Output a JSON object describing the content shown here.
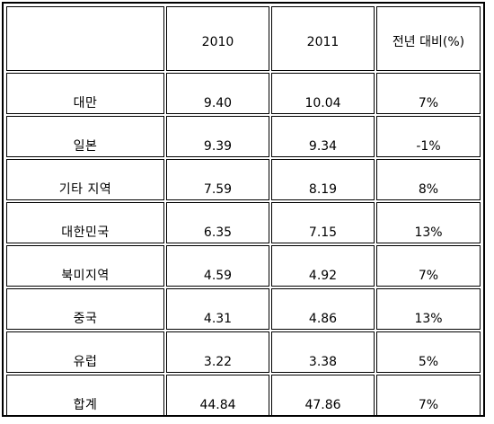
{
  "table": {
    "header": [
      "",
      "2010",
      "2011",
      "전년 대비(%)"
    ],
    "rows": [
      {
        "region": "대만",
        "y2010": "9.40",
        "y2011": "10.04",
        "change": "7%"
      },
      {
        "region": "일본",
        "y2010": "9.39",
        "y2011": "9.34",
        "change": "-1%"
      },
      {
        "region": "기타 지역",
        "y2010": "7.59",
        "y2011": "8.19",
        "change": "8%"
      },
      {
        "region": "대한민국",
        "y2010": "6.35",
        "y2011": "7.15",
        "change": "13%"
      },
      {
        "region": "북미지역",
        "y2010": "4.59",
        "y2011": "4.92",
        "change": "7%"
      },
      {
        "region": "중국",
        "y2010": "4.31",
        "y2011": "4.86",
        "change": "13%"
      },
      {
        "region": "유럽",
        "y2010": "3.22",
        "y2011": "3.38",
        "change": "5%"
      },
      {
        "region": "합계",
        "y2010": "44.84",
        "y2011": "47.86",
        "change": "7%"
      }
    ]
  }
}
